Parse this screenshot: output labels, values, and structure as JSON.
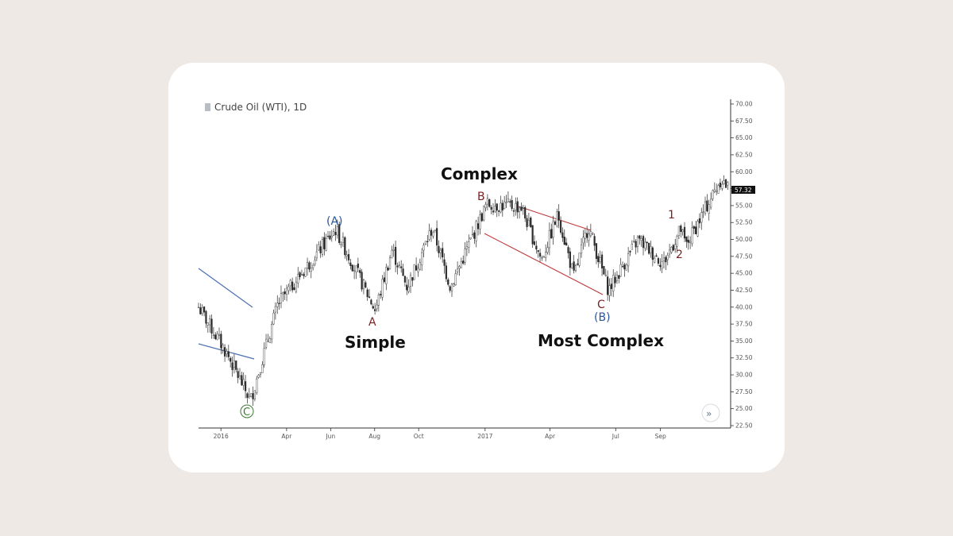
{
  "chart_data": {
    "type": "candlestick",
    "title": "Crude Oil (WTI), 1D",
    "y_ticks": [
      "70.00",
      "67.50",
      "65.00",
      "62.50",
      "60.00",
      "57.50",
      "55.00",
      "52.50",
      "50.00",
      "47.50",
      "45.00",
      "42.50",
      "40.00",
      "37.50",
      "35.00",
      "32.50",
      "30.00",
      "27.50",
      "25.00",
      "22.50"
    ],
    "ylim": [
      22.5,
      70
    ],
    "x_ticks": [
      "2016",
      "Apr",
      "Jun",
      "Aug",
      "Oct",
      "2017",
      "Apr",
      "Jul",
      "Sep"
    ],
    "last_price": "57.32",
    "grid": false,
    "annotations": {
      "wave_c_start": "C",
      "wave_A_big": "(A)",
      "wave_a": "A",
      "wave_b": "B",
      "wave_c": "C",
      "wave_B_big": "(B)",
      "wave_1": "1",
      "wave_2": "2",
      "simple": "Simple",
      "complex": "Complex",
      "most_complex": "Most Complex"
    },
    "price_path": [
      {
        "x": "2015-12-01",
        "y": 40.0
      },
      {
        "x": "2016-01-10",
        "y": 33.0
      },
      {
        "x": "2016-02-11",
        "y": 26.2
      },
      {
        "x": "2016-03-20",
        "y": 40.5
      },
      {
        "x": "2016-06-08",
        "y": 51.5
      },
      {
        "x": "2016-08-02",
        "y": 39.5
      },
      {
        "x": "2016-08-25",
        "y": 48.5
      },
      {
        "x": "2016-09-15",
        "y": 43.0
      },
      {
        "x": "2016-10-20",
        "y": 51.7
      },
      {
        "x": "2016-11-14",
        "y": 43.0
      },
      {
        "x": "2017-01-03",
        "y": 55.2
      },
      {
        "x": "2017-02-20",
        "y": 54.8
      },
      {
        "x": "2017-03-20",
        "y": 47.0
      },
      {
        "x": "2017-04-12",
        "y": 53.7
      },
      {
        "x": "2017-05-04",
        "y": 44.5
      },
      {
        "x": "2017-05-24",
        "y": 52.0
      },
      {
        "x": "2017-06-21",
        "y": 42.5
      },
      {
        "x": "2017-08-01",
        "y": 50.0
      },
      {
        "x": "2017-09-05",
        "y": 46.5
      },
      {
        "x": "2017-09-29",
        "y": 51.5
      },
      {
        "x": "2017-10-06",
        "y": 49.0
      },
      {
        "x": "2017-11-24",
        "y": 59.0
      },
      {
        "x": "2017-12-05",
        "y": 57.3
      }
    ]
  }
}
